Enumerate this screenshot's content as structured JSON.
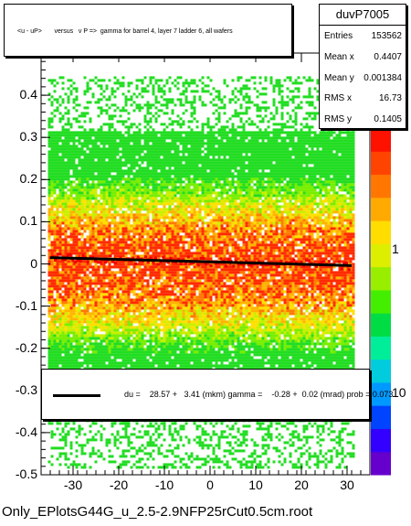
{
  "chart_data": {
    "type": "heatmap",
    "title": "<u - uP>       versus   v P =>  gamma for barrel 4, layer 7 ladder 6, all wafers",
    "xlabel": "",
    "ylabel": "",
    "xlim": [
      -37,
      35
    ],
    "ylim": [
      -0.5,
      0.5
    ],
    "x_ticks": [
      -30,
      -20,
      -10,
      0,
      10,
      20,
      30
    ],
    "y_ticks": [
      -0.5,
      -0.4,
      -0.3,
      -0.2,
      -0.1,
      0,
      0.1,
      0.2,
      0.3,
      0.4
    ],
    "y_tick_labels": [
      "-0.5",
      "-0.4",
      "-0.3",
      "-0.2",
      "-0.1",
      "0",
      "0.1",
      "0.2",
      "0.3",
      "0.4"
    ],
    "x_tick_labels": [
      "-30",
      "-20",
      "-10",
      "0",
      "10",
      "20",
      "30"
    ],
    "z_scale": "log",
    "z_tick_labels": [
      "1",
      "10"
    ],
    "fit_line": {
      "x": [
        -35,
        31
      ],
      "y": [
        0.015,
        -0.004
      ]
    },
    "grid": false
  },
  "stats": {
    "name": "duvP7005",
    "rows": [
      {
        "key": "Entries",
        "value": "153562"
      },
      {
        "key": "Mean x",
        "value": "0.4407"
      },
      {
        "key": "Mean y",
        "value": "0.001384"
      },
      {
        "key": "RMS x",
        "value": "16.73"
      },
      {
        "key": "RMS y",
        "value": "0.1405"
      }
    ]
  },
  "fit": {
    "text": "du =    28.57 +   3.41 (mkm) gamma =    -0.28 +  0.02 (mrad) prob = 0.073"
  },
  "footer": {
    "filename": "Only_EPlotsG44G_u_2.5-2.9NFP25rCut0.5cm.root"
  },
  "colors": {
    "frame": "#000000",
    "fit": "#000000",
    "low": "#00cc33",
    "high": "#ff0000"
  }
}
